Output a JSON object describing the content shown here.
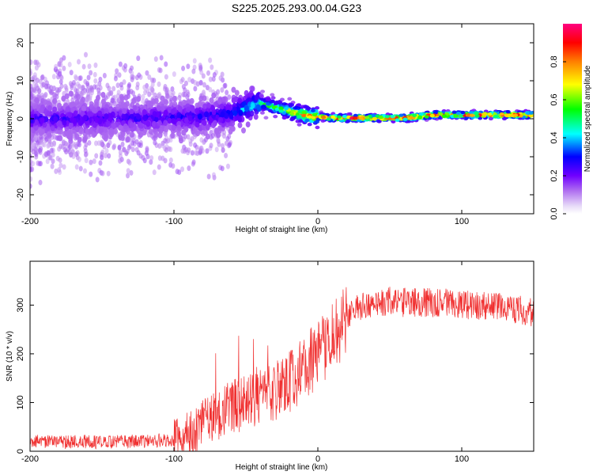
{
  "chart_data": [
    {
      "type": "heatmap",
      "title": "S225.2025.293.00.04.G23",
      "xlabel": "Height of straight line (km)",
      "ylabel": "Frequency (Hz)",
      "xlim": [
        -200,
        150
      ],
      "ylim": [
        -25,
        25
      ],
      "xticks": [
        "-200",
        "-100",
        "0",
        "100"
      ],
      "yticks": [
        "-20",
        "-10",
        "0",
        "10",
        "20"
      ],
      "colorbar": {
        "label": "Normalized spectral amplitude",
        "range": [
          0,
          1
        ],
        "ticks": [
          "0.0",
          "0.2",
          "0.4",
          "0.6",
          "0.8"
        ],
        "colors": [
          "#e8dcf8",
          "#b070f0",
          "#7000ff",
          "#0000ff",
          "#00ffff",
          "#00ff00",
          "#ffff00",
          "#ff8000",
          "#ff0000",
          "#ff0080"
        ]
      },
      "ridge": {
        "x": [
          -200,
          -150,
          -100,
          -80,
          -60,
          -50,
          -40,
          -30,
          -20,
          -10,
          0,
          10,
          20,
          40,
          60,
          80,
          100,
          120,
          150
        ],
        "freq": [
          0,
          0,
          0.5,
          0.5,
          1.5,
          3,
          4,
          3,
          2,
          1,
          0.5,
          0.2,
          0.2,
          0.2,
          0.2,
          1,
          1,
          1,
          1
        ],
        "amplitude": [
          0.3,
          0.28,
          0.3,
          0.32,
          0.35,
          0.45,
          0.5,
          0.6,
          0.7,
          0.8,
          0.85,
          0.92,
          0.95,
          0.95,
          0.95,
          0.95,
          0.92,
          0.95,
          0.92
        ]
      }
    },
    {
      "type": "line",
      "xlabel": "Height of straight line (km)",
      "ylabel": "SNR (10 * v/v)",
      "xlim": [
        -200,
        150
      ],
      "ylim": [
        0,
        390
      ],
      "xticks": [
        "-200",
        "-100",
        "0",
        "100"
      ],
      "yticks": [
        "0",
        "100",
        "200",
        "300"
      ],
      "color": "#f03030",
      "series": [
        {
          "name": "SNR",
          "x": [
            -200,
            -190,
            -180,
            -170,
            -160,
            -150,
            -140,
            -130,
            -120,
            -110,
            -100,
            -90,
            -80,
            -70,
            -60,
            -50,
            -40,
            -30,
            -20,
            -10,
            0,
            5,
            10,
            15,
            20,
            30,
            40,
            50,
            60,
            70,
            80,
            90,
            100,
            110,
            120,
            130,
            140,
            150
          ],
          "values": [
            22,
            20,
            18,
            19,
            20,
            18,
            19,
            20,
            21,
            22,
            25,
            35,
            55,
            75,
            90,
            100,
            110,
            120,
            140,
            170,
            200,
            215,
            230,
            250,
            280,
            300,
            305,
            308,
            305,
            305,
            305,
            308,
            300,
            300,
            298,
            295,
            290,
            285
          ]
        }
      ]
    }
  ]
}
